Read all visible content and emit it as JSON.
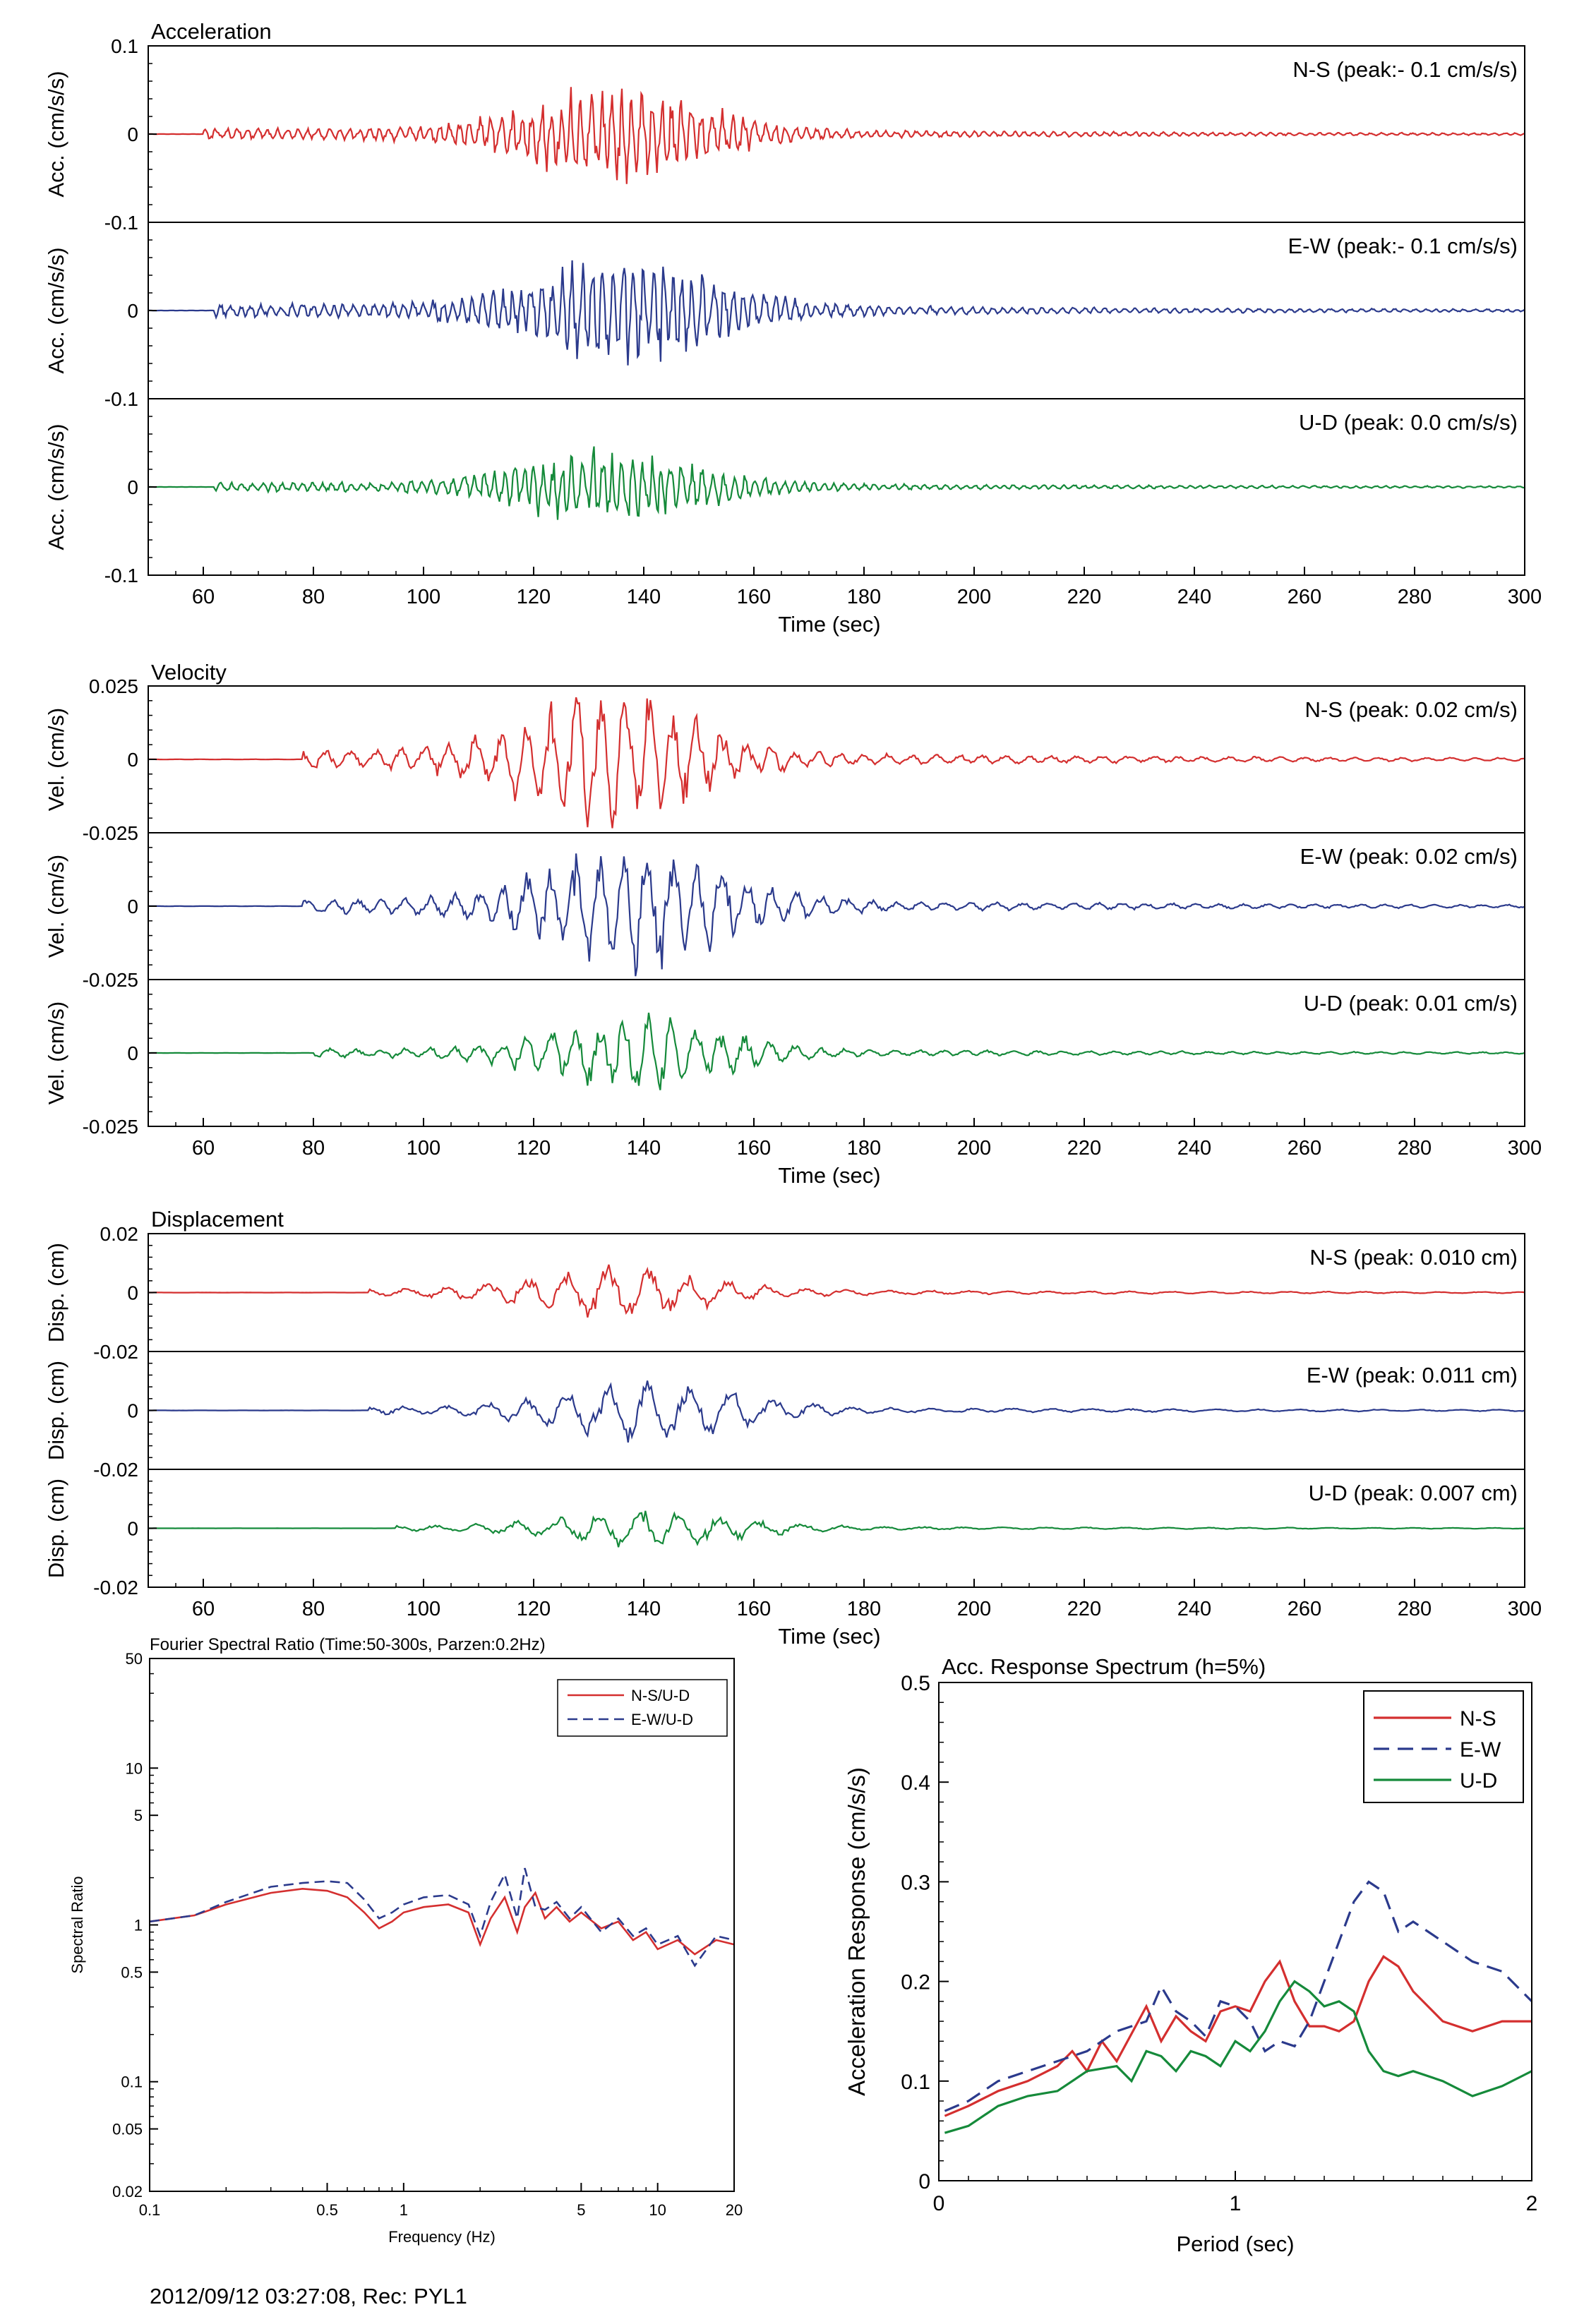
{
  "footer": "2012/09/12 03:27:08, Rec: PYL1",
  "colors": {
    "ns": "#d42f2f",
    "ew": "#2b3a8c",
    "ud": "#158a3a",
    "axis": "#000000"
  },
  "chart_data": [
    {
      "type": "line",
      "title": "Acceleration",
      "xlabel": "Time (sec)",
      "ylabel": "Acc. (cm/s/s)",
      "xlim": [
        50,
        300
      ],
      "xticks": [
        60,
        80,
        100,
        120,
        140,
        160,
        180,
        200,
        220,
        240,
        260,
        280,
        300
      ],
      "ylim": [
        -0.1,
        0.1
      ],
      "ytick_labels": [
        "0.1",
        "0",
        "-0.1"
      ],
      "grid": false,
      "series": [
        {
          "name": "N-S (peak:- 0.1 cm/s/s)",
          "component": "ns",
          "amplitude": 0.05,
          "onset": 60,
          "peak_time": 136,
          "decay": 150,
          "seed": 11
        },
        {
          "name": "E-W (peak:- 0.1 cm/s/s)",
          "component": "ew",
          "amplitude": 0.06,
          "onset": 62,
          "peak_time": 138,
          "decay": 150,
          "seed": 23
        },
        {
          "name": "U-D (peak: 0.0 cm/s/s)",
          "component": "ud",
          "amplitude": 0.04,
          "onset": 62,
          "peak_time": 135,
          "decay": 150,
          "seed": 37
        }
      ]
    },
    {
      "type": "line",
      "title": "Velocity",
      "xlabel": "Time (sec)",
      "ylabel": "Vel. (cm/s)",
      "xlim": [
        50,
        300
      ],
      "xticks": [
        60,
        80,
        100,
        120,
        140,
        160,
        180,
        200,
        220,
        240,
        260,
        280,
        300
      ],
      "ylim": [
        -0.025,
        0.025
      ],
      "ytick_labels": [
        "0.025",
        "0",
        "-0.025"
      ],
      "grid": false,
      "series": [
        {
          "name": "N-S (peak: 0.02 cm/s)",
          "component": "ns",
          "amplitude": 0.022,
          "onset": 78,
          "peak_time": 135,
          "decay": 150,
          "seed": 5
        },
        {
          "name": "E-W (peak: 0.02 cm/s)",
          "component": "ew",
          "amplitude": 0.02,
          "onset": 78,
          "peak_time": 140,
          "decay": 150,
          "seed": 9
        },
        {
          "name": "U-D (peak: 0.01 cm/s)",
          "component": "ud",
          "amplitude": 0.012,
          "onset": 80,
          "peak_time": 140,
          "decay": 150,
          "seed": 13
        }
      ]
    },
    {
      "type": "line",
      "title": "Displacement",
      "xlabel": "Time (sec)",
      "ylabel": "Disp. (cm)",
      "xlim": [
        50,
        300
      ],
      "xticks": [
        60,
        80,
        100,
        120,
        140,
        160,
        180,
        200,
        220,
        240,
        260,
        280,
        300
      ],
      "ylim": [
        -0.02,
        0.02
      ],
      "ytick_labels": [
        "0.02",
        "0",
        "-0.02"
      ],
      "grid": false,
      "series": [
        {
          "name": "N-S (peak: 0.010 cm)",
          "component": "ns",
          "amplitude": 0.009,
          "onset": 90,
          "peak_time": 136,
          "decay": 150,
          "seed": 17
        },
        {
          "name": "E-W (peak: 0.011 cm)",
          "component": "ew",
          "amplitude": 0.01,
          "onset": 90,
          "peak_time": 142,
          "decay": 150,
          "seed": 19
        },
        {
          "name": "U-D (peak: 0.007 cm)",
          "component": "ud",
          "amplitude": 0.006,
          "onset": 95,
          "peak_time": 142,
          "decay": 150,
          "seed": 29
        }
      ]
    },
    {
      "type": "line",
      "title": "Fourier Spectral Ratio (Time:50-300s, Parzen:0.2Hz)",
      "xlabel": "Frequency (Hz)",
      "ylabel": "Spectral Ratio",
      "xscale": "log",
      "yscale": "log",
      "xlim": [
        0.1,
        20
      ],
      "ylim": [
        0.02,
        50
      ],
      "xticks": [
        0.1,
        0.5,
        1,
        5,
        10,
        20
      ],
      "xtick_labels": [
        "0.1",
        "0.5",
        "1",
        "5",
        "10",
        "20"
      ],
      "minor_xticks": [
        0.2,
        0.3,
        0.4,
        0.6,
        0.7,
        0.8,
        0.9,
        2,
        3,
        4,
        6,
        7,
        8,
        9
      ],
      "yticks": [
        0.02,
        0.05,
        0.1,
        0.5,
        1,
        5,
        10,
        50
      ],
      "ytick_labels": [
        "0.02",
        "0.05",
        "0.1",
        "0.5",
        "1",
        "5",
        "10",
        "50"
      ],
      "minor_yticks": [
        0.03,
        0.04,
        0.06,
        0.07,
        0.08,
        0.09,
        0.2,
        0.3,
        0.4,
        0.6,
        0.7,
        0.8,
        0.9,
        2,
        3,
        4,
        6,
        7,
        8,
        9,
        20,
        30,
        40
      ],
      "legend": "top-right",
      "grid": false,
      "series": [
        {
          "name": "N-S/U-D",
          "component": "ns",
          "style": "solid",
          "x": [
            0.1,
            0.15,
            0.2,
            0.3,
            0.4,
            0.5,
            0.6,
            0.7,
            0.8,
            0.9,
            1.0,
            1.2,
            1.5,
            1.8,
            2.0,
            2.2,
            2.5,
            2.8,
            3.0,
            3.3,
            3.6,
            4.0,
            4.5,
            5.0,
            6.0,
            7.0,
            8.0,
            9.0,
            10,
            12,
            14,
            17,
            20
          ],
          "y": [
            1.05,
            1.15,
            1.35,
            1.6,
            1.7,
            1.65,
            1.5,
            1.2,
            0.95,
            1.05,
            1.2,
            1.3,
            1.35,
            1.2,
            0.75,
            1.1,
            1.5,
            0.9,
            1.3,
            1.6,
            1.1,
            1.3,
            1.05,
            1.2,
            0.95,
            1.05,
            0.8,
            0.9,
            0.7,
            0.8,
            0.65,
            0.8,
            0.75
          ]
        },
        {
          "name": "E-W/U-D",
          "component": "ew",
          "style": "dashed",
          "x": [
            0.1,
            0.15,
            0.2,
            0.3,
            0.4,
            0.5,
            0.6,
            0.7,
            0.8,
            0.9,
            1.0,
            1.2,
            1.5,
            1.8,
            2.0,
            2.2,
            2.5,
            2.8,
            3.0,
            3.3,
            3.6,
            4.0,
            4.5,
            5.0,
            6.0,
            7.0,
            8.0,
            9.0,
            10,
            12,
            14,
            17,
            20
          ],
          "y": [
            1.05,
            1.15,
            1.4,
            1.75,
            1.85,
            1.9,
            1.85,
            1.45,
            1.1,
            1.2,
            1.35,
            1.5,
            1.55,
            1.35,
            0.85,
            1.4,
            2.1,
            1.1,
            2.3,
            1.3,
            1.25,
            1.4,
            1.1,
            1.3,
            0.9,
            1.1,
            0.85,
            0.95,
            0.75,
            0.85,
            0.55,
            0.85,
            0.8
          ]
        }
      ]
    },
    {
      "type": "line",
      "title": "Acc. Response Spectrum (h=5%)",
      "xlabel": "Period (sec)",
      "ylabel": "Acceleration Response (cm/s/s)",
      "xlim": [
        0,
        2
      ],
      "ylim": [
        0,
        0.5
      ],
      "xticks": [
        0,
        1,
        2
      ],
      "xtick_labels": [
        "0",
        "1",
        "2"
      ],
      "yticks": [
        0,
        0.1,
        0.2,
        0.3,
        0.4,
        0.5
      ],
      "ytick_labels": [
        "0",
        "0.1",
        "0.2",
        "0.3",
        "0.4",
        "0.5"
      ],
      "legend": "top-right",
      "grid": false,
      "series": [
        {
          "name": "N-S",
          "component": "ns",
          "style": "solid",
          "x": [
            0.02,
            0.1,
            0.2,
            0.3,
            0.4,
            0.45,
            0.5,
            0.55,
            0.6,
            0.7,
            0.75,
            0.8,
            0.85,
            0.9,
            0.95,
            1.0,
            1.05,
            1.1,
            1.15,
            1.2,
            1.25,
            1.3,
            1.35,
            1.4,
            1.45,
            1.5,
            1.55,
            1.6,
            1.7,
            1.8,
            1.9,
            2.0
          ],
          "y": [
            0.065,
            0.075,
            0.09,
            0.1,
            0.115,
            0.13,
            0.11,
            0.14,
            0.12,
            0.175,
            0.14,
            0.165,
            0.15,
            0.14,
            0.17,
            0.175,
            0.17,
            0.2,
            0.22,
            0.18,
            0.155,
            0.155,
            0.15,
            0.16,
            0.2,
            0.225,
            0.215,
            0.19,
            0.16,
            0.15,
            0.16,
            0.16
          ]
        },
        {
          "name": "E-W",
          "component": "ew",
          "style": "dashed",
          "x": [
            0.02,
            0.1,
            0.2,
            0.3,
            0.4,
            0.5,
            0.6,
            0.7,
            0.75,
            0.8,
            0.85,
            0.9,
            0.95,
            1.0,
            1.05,
            1.1,
            1.15,
            1.2,
            1.25,
            1.3,
            1.35,
            1.4,
            1.45,
            1.5,
            1.55,
            1.6,
            1.7,
            1.8,
            1.9,
            2.0
          ],
          "y": [
            0.07,
            0.08,
            0.1,
            0.11,
            0.12,
            0.13,
            0.15,
            0.16,
            0.195,
            0.17,
            0.16,
            0.145,
            0.18,
            0.175,
            0.16,
            0.13,
            0.14,
            0.135,
            0.16,
            0.2,
            0.24,
            0.28,
            0.3,
            0.29,
            0.25,
            0.26,
            0.24,
            0.22,
            0.21,
            0.18
          ]
        },
        {
          "name": "U-D",
          "component": "ud",
          "style": "solid",
          "x": [
            0.02,
            0.1,
            0.2,
            0.3,
            0.4,
            0.5,
            0.6,
            0.65,
            0.7,
            0.75,
            0.8,
            0.85,
            0.9,
            0.95,
            1.0,
            1.05,
            1.1,
            1.15,
            1.2,
            1.25,
            1.3,
            1.35,
            1.4,
            1.45,
            1.5,
            1.55,
            1.6,
            1.7,
            1.8,
            1.9,
            2.0
          ],
          "y": [
            0.048,
            0.055,
            0.075,
            0.085,
            0.09,
            0.11,
            0.115,
            0.1,
            0.13,
            0.125,
            0.11,
            0.13,
            0.125,
            0.115,
            0.14,
            0.13,
            0.15,
            0.18,
            0.2,
            0.19,
            0.175,
            0.18,
            0.17,
            0.13,
            0.11,
            0.105,
            0.11,
            0.1,
            0.085,
            0.095,
            0.11
          ]
        }
      ]
    }
  ]
}
